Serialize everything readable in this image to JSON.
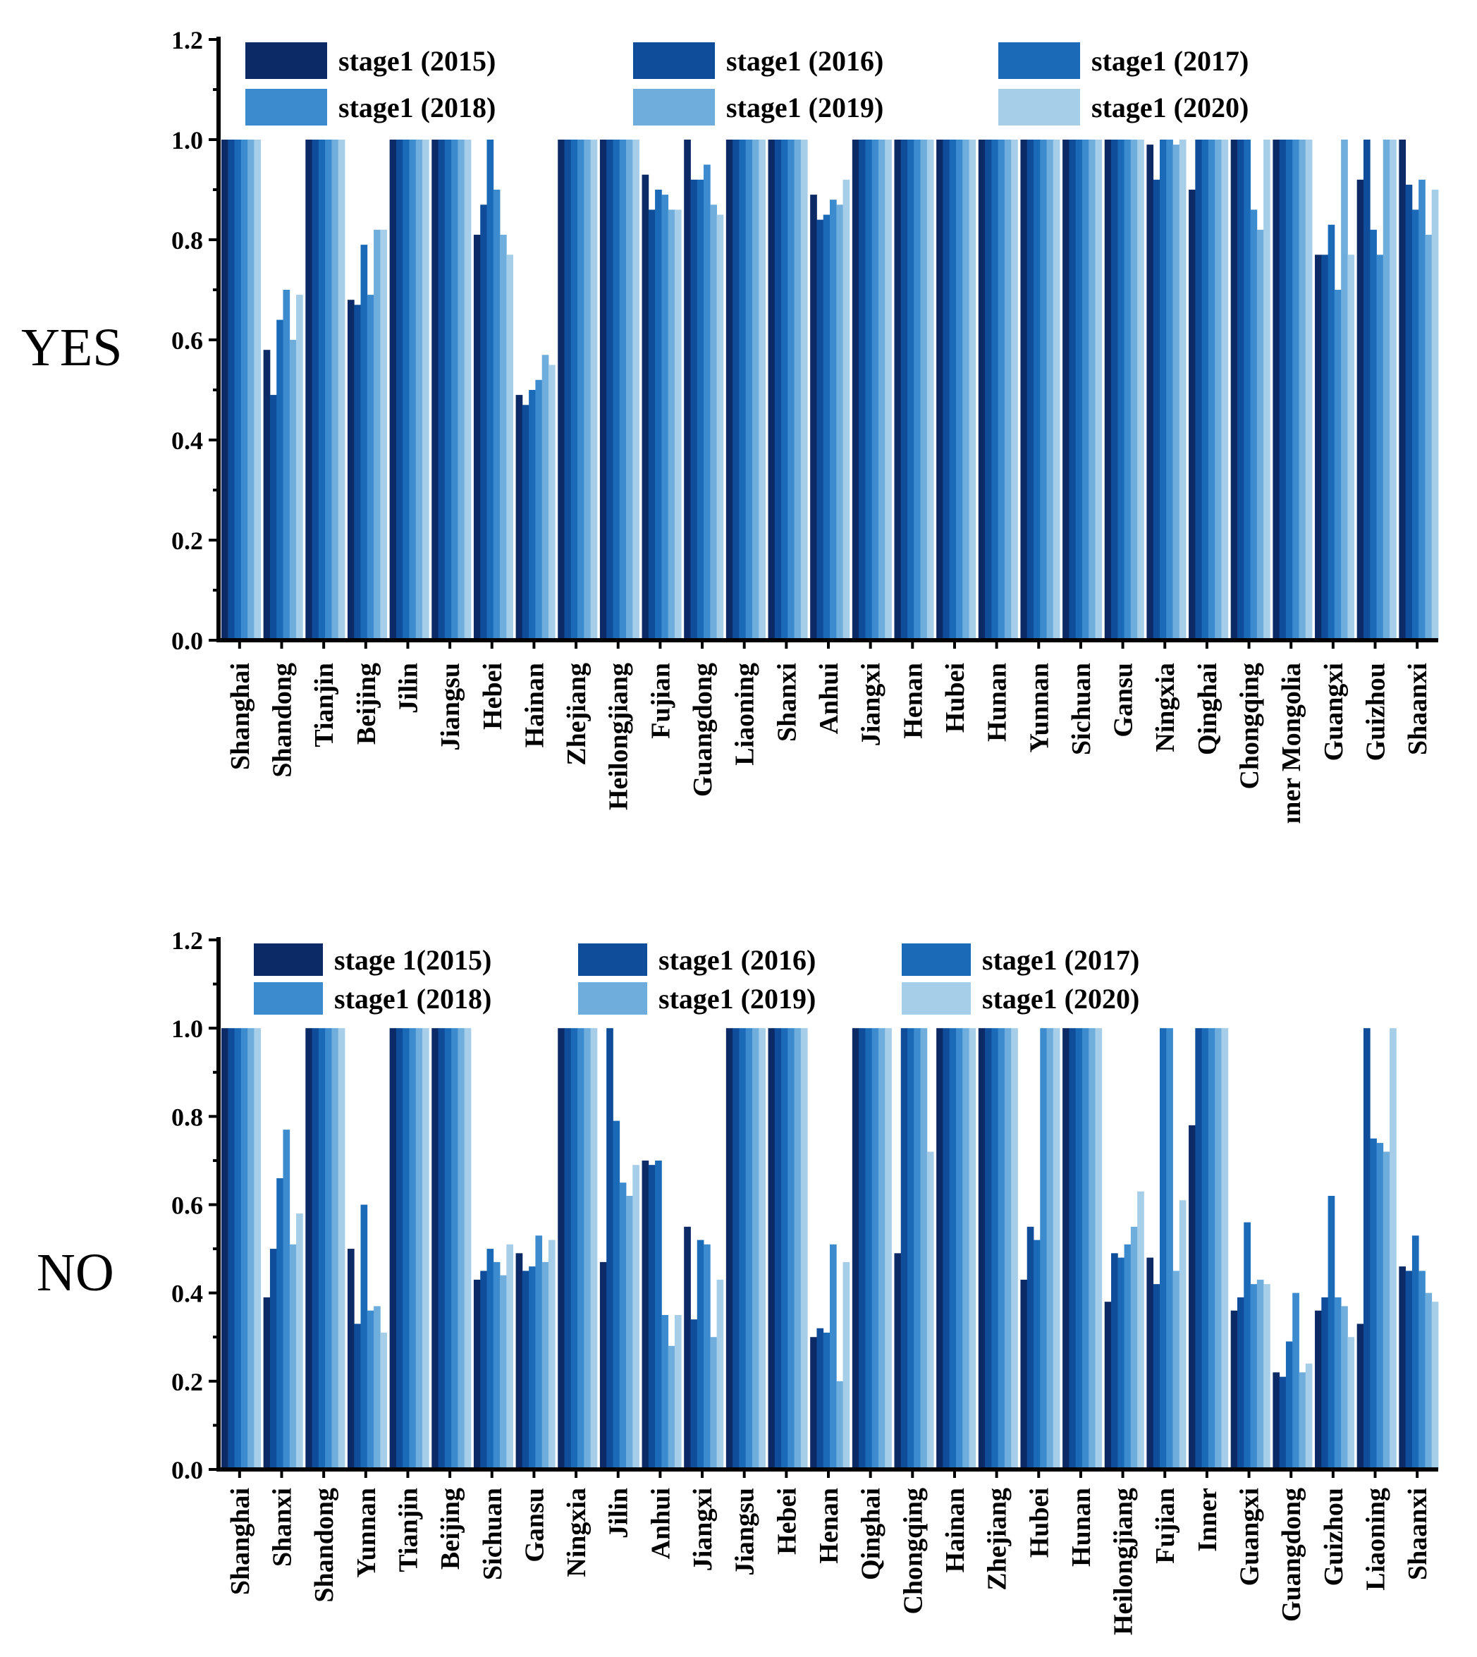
{
  "colors": [
    "#0c2a66",
    "#0f4d9a",
    "#1b6ab8",
    "#3d8bcf",
    "#6faedc",
    "#a6cee9"
  ],
  "chart_data": [
    {
      "type": "bar",
      "side_label": "YES",
      "legend": [
        "stage1 (2015)",
        "stage1 (2016)",
        "stage1 (2017)",
        "stage1 (2018)",
        "stage1 (2019)",
        "stage1 (2020)"
      ],
      "ylim": [
        0,
        1.2
      ],
      "yticks": [
        "0.0",
        "0.2",
        "0.4",
        "0.6",
        "0.8",
        "1.0",
        "1.2"
      ],
      "categories": [
        "Shanghai",
        "Shandong",
        "Tianjin",
        "Beijing",
        "Jilin",
        "Jiangsu",
        "Hebei",
        "Hainan",
        "Zhejiang",
        "Heilongjiang",
        "Fujian",
        "Guangdong",
        "Liaoning",
        "Shanxi",
        "Anhui",
        "Jiangxi",
        "Henan",
        "Hubei",
        "Hunan",
        "Yunnan",
        "Sichuan",
        "Gansu",
        "Ningxia",
        "Qinghai",
        "Chongqing",
        "Inner Mongolia",
        "Guangxi",
        "Guizhou",
        "Shaanxi"
      ],
      "category_display": [
        "Shanghai",
        "Shandong",
        "Tianjin",
        "Beijing",
        "Jilin",
        "Jiangsu",
        "Hebei",
        "Hainan",
        "Zhejiang",
        "Heilongjiang",
        "Fujian",
        "Guangdong",
        "Liaoning",
        "Shanxi",
        "Anhui",
        "Jiangxi",
        "Henan",
        "Hubei",
        "Hunan",
        "Yunnan",
        "Sichuan",
        "Gansu",
        "Ningxia",
        "Qinghai",
        "Chongqing",
        "ıner Mongolia",
        "Guangxi",
        "Guizhou",
        "Shaanxi"
      ],
      "series": [
        {
          "name": "stage1 (2015)",
          "values": [
            1.0,
            0.58,
            1.0,
            0.68,
            1.0,
            1.0,
            0.81,
            0.49,
            1.0,
            1.0,
            0.93,
            1.0,
            1.0,
            1.0,
            0.89,
            1.0,
            1.0,
            1.0,
            1.0,
            1.0,
            1.0,
            1.0,
            0.99,
            0.9,
            1.0,
            1.0,
            0.77,
            0.92,
            1.0
          ]
        },
        {
          "name": "stage1 (2016)",
          "values": [
            1.0,
            0.49,
            1.0,
            0.67,
            1.0,
            1.0,
            0.87,
            0.47,
            1.0,
            1.0,
            0.86,
            0.92,
            1.0,
            1.0,
            0.84,
            1.0,
            1.0,
            1.0,
            1.0,
            1.0,
            1.0,
            1.0,
            0.92,
            1.0,
            1.0,
            1.0,
            0.77,
            1.0,
            0.91
          ]
        },
        {
          "name": "stage1 (2017)",
          "values": [
            1.0,
            0.64,
            1.0,
            0.79,
            1.0,
            1.0,
            1.0,
            0.5,
            1.0,
            1.0,
            0.9,
            0.92,
            1.0,
            1.0,
            0.85,
            1.0,
            1.0,
            1.0,
            1.0,
            1.0,
            1.0,
            1.0,
            1.0,
            1.0,
            1.0,
            1.0,
            0.83,
            0.82,
            0.86
          ]
        },
        {
          "name": "stage1 (2018)",
          "values": [
            1.0,
            0.7,
            1.0,
            0.69,
            1.0,
            1.0,
            0.9,
            0.52,
            1.0,
            1.0,
            0.89,
            0.95,
            1.0,
            1.0,
            0.88,
            1.0,
            1.0,
            1.0,
            1.0,
            1.0,
            1.0,
            1.0,
            1.0,
            1.0,
            0.86,
            1.0,
            0.7,
            0.77,
            0.92
          ]
        },
        {
          "name": "stage1 (2019)",
          "values": [
            1.0,
            0.6,
            1.0,
            0.82,
            1.0,
            1.0,
            0.81,
            0.57,
            1.0,
            1.0,
            0.86,
            0.87,
            1.0,
            1.0,
            0.87,
            1.0,
            1.0,
            1.0,
            1.0,
            1.0,
            1.0,
            1.0,
            0.99,
            1.0,
            0.82,
            1.0,
            1.0,
            1.0,
            0.81
          ]
        },
        {
          "name": "stage1 (2020)",
          "values": [
            1.0,
            0.69,
            1.0,
            0.82,
            1.0,
            1.0,
            0.77,
            0.55,
            1.0,
            1.0,
            0.86,
            0.85,
            1.0,
            1.0,
            0.92,
            1.0,
            1.0,
            1.0,
            1.0,
            1.0,
            1.0,
            1.0,
            1.0,
            1.0,
            1.0,
            1.0,
            0.77,
            1.0,
            0.9
          ]
        }
      ]
    },
    {
      "type": "bar",
      "side_label": "NO",
      "legend": [
        "stage 1(2015)",
        "stage1 (2016)",
        "stage1 (2017)",
        "stage1 (2018)",
        "stage1 (2019)",
        "stage1 (2020)"
      ],
      "ylim": [
        0,
        1.2
      ],
      "yticks": [
        "0.0",
        "0.2",
        "0.4",
        "0.6",
        "0.8",
        "1.0",
        "1.2"
      ],
      "categories": [
        "Shanghai",
        "Shanxi",
        "Shandong",
        "Yunnan",
        "Tianjin",
        "Beijing",
        "Sichuan",
        "Gansu",
        "Ningxia",
        "Jilin",
        "Anhui",
        "Jiangxi",
        "Jiangsu",
        "Hebei",
        "Henan",
        "Qinghai",
        "Chongqing",
        "Hainan",
        "Zhejiang",
        "Hubei",
        "Hunan",
        "Heilongjiang",
        "Fujian",
        "Inner",
        "Guangxi",
        "Guangdong",
        "Guizhou",
        "Liaoning",
        "Shaanxi"
      ],
      "category_display": [
        "Shanghai",
        "Shanxi",
        "Shandong",
        "Yunnan",
        "Tianjin",
        "Beijing",
        "Sichuan",
        "Gansu",
        "Ningxia",
        "Jilin",
        "Anhui",
        "Jiangxi",
        "Jiangsu",
        "Hebei",
        "Henan",
        "Qinghai",
        "Chongqing",
        "Hainan",
        "Zhejiang",
        "Hubei",
        "Hunan",
        "Heilongjiang",
        "Fujian",
        "Inner",
        "Guangxi",
        "Guangdong",
        "Guizhou",
        "Liaoning",
        "Shaanxi"
      ],
      "series": [
        {
          "name": "stage 1(2015)",
          "values": [
            1.0,
            0.39,
            1.0,
            0.5,
            1.0,
            1.0,
            0.43,
            0.49,
            1.0,
            0.47,
            0.7,
            0.55,
            1.0,
            1.0,
            0.3,
            1.0,
            0.49,
            1.0,
            1.0,
            0.43,
            1.0,
            0.38,
            0.48,
            0.78,
            0.36,
            0.22,
            0.36,
            0.33,
            0.46
          ]
        },
        {
          "name": "stage1 (2016)",
          "values": [
            1.0,
            0.5,
            1.0,
            0.33,
            1.0,
            1.0,
            0.45,
            0.45,
            1.0,
            1.0,
            0.69,
            0.34,
            1.0,
            1.0,
            0.32,
            1.0,
            1.0,
            1.0,
            1.0,
            0.55,
            1.0,
            0.49,
            0.42,
            1.0,
            0.39,
            0.21,
            0.39,
            1.0,
            0.45
          ]
        },
        {
          "name": "stage1 (2017)",
          "values": [
            1.0,
            0.66,
            1.0,
            0.6,
            1.0,
            1.0,
            0.5,
            0.46,
            1.0,
            0.79,
            0.7,
            0.52,
            1.0,
            1.0,
            0.31,
            1.0,
            1.0,
            1.0,
            1.0,
            0.52,
            1.0,
            0.48,
            1.0,
            1.0,
            0.56,
            0.29,
            0.62,
            0.75,
            0.53
          ]
        },
        {
          "name": "stage1 (2018)",
          "values": [
            1.0,
            0.77,
            1.0,
            0.36,
            1.0,
            1.0,
            0.47,
            0.53,
            1.0,
            0.65,
            0.35,
            0.51,
            1.0,
            1.0,
            0.51,
            1.0,
            1.0,
            1.0,
            1.0,
            1.0,
            1.0,
            0.51,
            1.0,
            1.0,
            0.42,
            0.4,
            0.39,
            0.74,
            0.45
          ]
        },
        {
          "name": "stage1 (2019)",
          "values": [
            1.0,
            0.51,
            1.0,
            0.37,
            1.0,
            1.0,
            0.44,
            0.47,
            1.0,
            0.62,
            0.28,
            0.3,
            1.0,
            1.0,
            0.2,
            1.0,
            1.0,
            1.0,
            1.0,
            1.0,
            1.0,
            0.55,
            0.45,
            1.0,
            0.43,
            0.22,
            0.37,
            0.72,
            0.4
          ]
        },
        {
          "name": "stage1 (2020)",
          "values": [
            1.0,
            0.58,
            1.0,
            0.31,
            1.0,
            1.0,
            0.51,
            0.52,
            1.0,
            0.69,
            0.35,
            0.43,
            1.0,
            1.0,
            0.47,
            1.0,
            0.72,
            1.0,
            1.0,
            1.0,
            1.0,
            0.63,
            0.61,
            1.0,
            0.42,
            0.24,
            0.3,
            1.0,
            0.38
          ]
        }
      ]
    }
  ]
}
